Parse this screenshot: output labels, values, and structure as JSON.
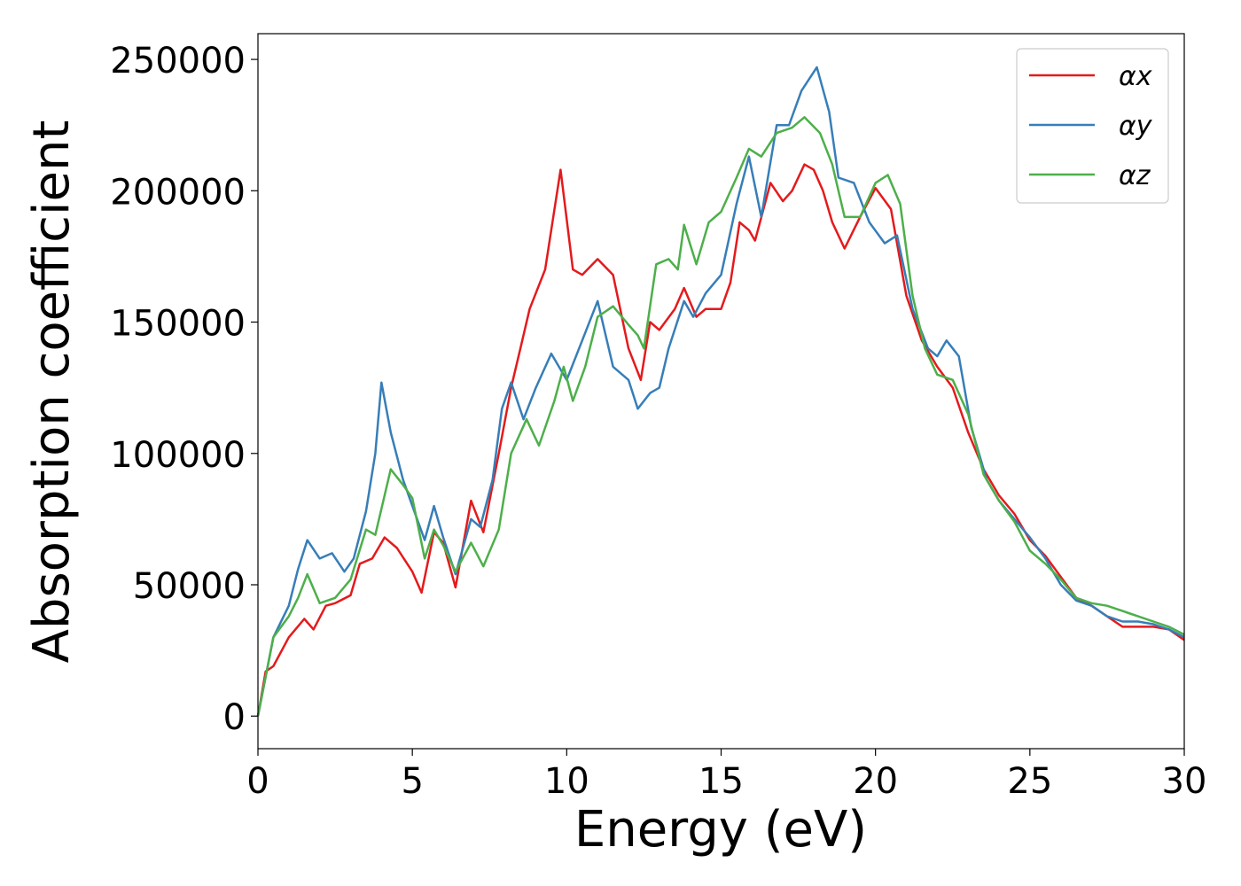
{
  "chart_data": {
    "type": "line",
    "xlabel": "Energy (eV)",
    "ylabel": "Absorption coefficient",
    "xlim": [
      0,
      30
    ],
    "ylim": [
      -12400,
      259800
    ],
    "xticks": [
      0,
      5,
      10,
      15,
      20,
      25,
      30
    ],
    "yticks": [
      0,
      50000,
      100000,
      150000,
      200000,
      250000
    ],
    "legend": "upper right",
    "grid": false,
    "series": [
      {
        "name": "αx",
        "color": "#e41a1c",
        "x": [
          0,
          0.25,
          0.5,
          1,
          1.5,
          1.8,
          2.2,
          2.5,
          3,
          3.3,
          3.7,
          4.1,
          4.5,
          5,
          5.3,
          5.7,
          6,
          6.4,
          6.9,
          7.3,
          7.8,
          8.2,
          8.5,
          8.8,
          9.3,
          9.8,
          10.2,
          10.5,
          11,
          11.5,
          12,
          12.4,
          12.7,
          13,
          13.5,
          13.8,
          14.2,
          14.5,
          15,
          15.3,
          15.6,
          15.9,
          16.1,
          16.6,
          17,
          17.3,
          17.7,
          18,
          18.3,
          18.6,
          19,
          19.5,
          20,
          20.5,
          21,
          21.5,
          22,
          22.5,
          23,
          23.5,
          24,
          24.5,
          25,
          25.5,
          26,
          26.5,
          27,
          27.5,
          28,
          28.5,
          29,
          29.5,
          30
        ],
        "values": [
          0,
          17000,
          19000,
          30000,
          37000,
          33000,
          42000,
          43000,
          46000,
          58000,
          60000,
          68000,
          64000,
          55000,
          47000,
          70000,
          66000,
          49000,
          82000,
          70000,
          100000,
          125000,
          140000,
          155000,
          170000,
          208000,
          170000,
          168000,
          174000,
          168000,
          140000,
          128000,
          150000,
          147000,
          155000,
          163000,
          152000,
          155000,
          155000,
          165000,
          188000,
          185000,
          181000,
          203000,
          196000,
          200000,
          210000,
          208000,
          200000,
          188000,
          178000,
          190000,
          201000,
          193000,
          160000,
          143000,
          133000,
          125000,
          108000,
          94000,
          84000,
          77000,
          67000,
          61000,
          53000,
          45000,
          42000,
          38000,
          34000,
          34000,
          34000,
          33000,
          29000
        ]
      },
      {
        "name": "αy",
        "color": "#377eb8",
        "x": [
          0,
          0.5,
          1,
          1.3,
          1.6,
          2,
          2.4,
          2.8,
          3.1,
          3.5,
          3.8,
          4,
          4.3,
          4.7,
          5,
          5.4,
          5.7,
          6,
          6.4,
          6.9,
          7.2,
          7.6,
          7.9,
          8.2,
          8.6,
          9,
          9.5,
          10,
          10.5,
          11,
          11.5,
          12,
          12.3,
          12.7,
          13,
          13.3,
          13.8,
          14.1,
          14.5,
          15,
          15.5,
          15.9,
          16.3,
          16.8,
          17.2,
          17.6,
          18.1,
          18.5,
          18.8,
          19.3,
          19.8,
          20.3,
          20.7,
          21.2,
          21.7,
          22,
          22.3,
          22.7,
          23.1,
          23.6,
          24,
          24.5,
          25,
          25.5,
          26,
          26.5,
          27,
          27.5,
          28,
          28.5,
          29,
          29.5,
          30
        ],
        "values": [
          0,
          30000,
          42000,
          56000,
          67000,
          60000,
          62000,
          55000,
          60000,
          78000,
          100000,
          127000,
          108000,
          90000,
          80000,
          67000,
          80000,
          68000,
          54000,
          75000,
          72000,
          90000,
          117000,
          127000,
          113000,
          125000,
          138000,
          128000,
          143000,
          158000,
          133000,
          128000,
          117000,
          123000,
          125000,
          140000,
          158000,
          152000,
          161000,
          168000,
          195000,
          213000,
          190000,
          225000,
          225000,
          238000,
          247000,
          230000,
          205000,
          203000,
          188000,
          180000,
          183000,
          155000,
          140000,
          137000,
          143000,
          137000,
          110000,
          90000,
          82000,
          75000,
          68000,
          60000,
          50000,
          44000,
          42000,
          38000,
          36000,
          36000,
          35000,
          33000,
          30000
        ]
      },
      {
        "name": "αz",
        "color": "#4daf4a",
        "x": [
          0,
          0.5,
          1,
          1.3,
          1.6,
          2,
          2.5,
          3,
          3.5,
          3.8,
          4.3,
          4.7,
          5,
          5.4,
          5.7,
          6,
          6.4,
          6.9,
          7.3,
          7.8,
          8.2,
          8.7,
          9.1,
          9.6,
          9.9,
          10.2,
          10.6,
          11,
          11.5,
          12,
          12.3,
          12.5,
          12.9,
          13.3,
          13.6,
          13.8,
          14.2,
          14.6,
          15,
          15.5,
          15.9,
          16.3,
          16.8,
          17.3,
          17.7,
          18.2,
          18.6,
          19,
          19.5,
          20,
          20.4,
          20.8,
          21.2,
          21.6,
          22,
          22.5,
          23,
          23.5,
          24,
          24.5,
          25,
          25.5,
          26,
          26.5,
          27,
          27.5,
          28,
          28.5,
          29,
          29.5,
          30
        ],
        "values": [
          0,
          30000,
          38000,
          45000,
          54000,
          43000,
          45000,
          52000,
          71000,
          69000,
          94000,
          88000,
          83000,
          60000,
          71000,
          65000,
          55000,
          66000,
          57000,
          71000,
          100000,
          113000,
          103000,
          120000,
          133000,
          120000,
          133000,
          152000,
          156000,
          149000,
          145000,
          140000,
          172000,
          174000,
          170000,
          187000,
          172000,
          188000,
          192000,
          205000,
          216000,
          213000,
          222000,
          224000,
          228000,
          222000,
          210000,
          190000,
          190000,
          203000,
          206000,
          195000,
          160000,
          140000,
          130000,
          128000,
          115000,
          92000,
          82000,
          74000,
          63000,
          58000,
          52000,
          45000,
          43000,
          42000,
          40000,
          38000,
          36000,
          34000,
          31000
        ]
      }
    ]
  }
}
